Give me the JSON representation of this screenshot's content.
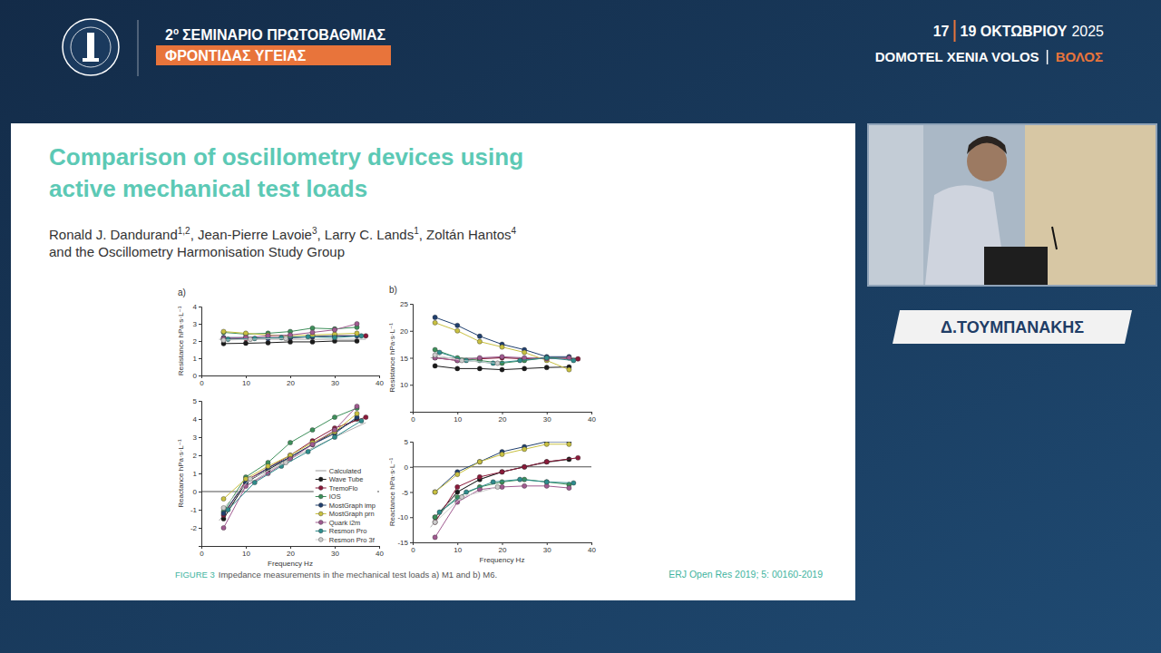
{
  "header": {
    "edition": "2",
    "edition_sup": "ο",
    "line1": "ΣΕΜΙΝΑΡΙΟ ΠΡΩΤΟΒΑΘΜΙΑΣ",
    "line2": "ΦΡΟΝΤΙΔΑΣ ΥΓΕΙΑΣ",
    "date_start": "17",
    "date_end": "19 ΟΚΤΩΒΡΙΟΥ",
    "year": "2025",
    "venue": "DOMOTEL XENIA VOLOS",
    "city": "ΒΟΛΟΣ"
  },
  "speaker": "Δ.ΤΟΥΜΠΑΝΑΚΗΣ",
  "slide": {
    "title_lines": [
      "Comparison of oscillometry devices using",
      "active mechanical test loads"
    ],
    "authors": [
      {
        "text": "Ronald J. Dandurand",
        "sup": "1,2"
      },
      {
        "text": ", Jean-Pierre Lavoie",
        "sup": "3"
      },
      {
        "text": ", Larry C. Lands",
        "sup": "1"
      },
      {
        "text": ", Zoltán Hantos",
        "sup": "4"
      }
    ],
    "authors_line2": "and the Oscillometry Harmonisation Study Group",
    "caption": {
      "label": "FIGURE 3",
      "text": "Impedance measurements in the mechanical test loads a) M1 and b) M6."
    },
    "citation": "ERJ Open Res 2019; 5: 00160-2019"
  },
  "chart_data": [
    {
      "type": "line",
      "panel": "a)",
      "y_label": "Resistance hPa·s·L⁻¹",
      "xlim": [
        0,
        40
      ],
      "xticks": [
        0,
        10,
        20,
        30,
        40
      ],
      "ylim": [
        0,
        4
      ],
      "yticks": [
        0,
        1,
        2,
        3,
        4
      ],
      "series": [
        {
          "name": "Calculated",
          "color": "#9a9a9a",
          "marker": "none",
          "x": [
            4,
            37
          ],
          "values": [
            2.1,
            2.1
          ]
        },
        {
          "name": "Wave Tube",
          "color": "#1a1a1a",
          "marker": "circle",
          "x": [
            5,
            10,
            15,
            20,
            25,
            30,
            35
          ],
          "values": [
            1.85,
            1.87,
            1.9,
            1.95,
            1.95,
            2.0,
            2.0
          ]
        },
        {
          "name": "TremoFlo",
          "color": "#8b1a3a",
          "marker": "circle",
          "x": [
            5,
            10,
            15,
            20,
            25,
            30,
            37
          ],
          "values": [
            2.1,
            2.15,
            2.2,
            2.2,
            2.25,
            2.3,
            2.3
          ]
        },
        {
          "name": "IOS",
          "color": "#3d8f5a",
          "marker": "circle",
          "x": [
            5,
            10,
            15,
            20,
            25,
            30,
            35
          ],
          "values": [
            2.5,
            2.4,
            2.45,
            2.55,
            2.75,
            2.7,
            2.8
          ]
        },
        {
          "name": "MostGraph imp",
          "color": "#1f3f6e",
          "marker": "circle",
          "x": [
            5,
            10,
            15,
            20,
            25,
            30,
            35
          ],
          "values": [
            2.2,
            2.2,
            2.15,
            2.2,
            2.25,
            2.3,
            2.3
          ]
        },
        {
          "name": "MostGraph prn",
          "color": "#c8c040",
          "marker": "circle",
          "x": [
            5,
            10,
            15,
            20,
            25,
            30,
            35
          ],
          "values": [
            2.55,
            2.45,
            2.35,
            2.3,
            2.35,
            2.4,
            2.45
          ]
        },
        {
          "name": "Quark i2m",
          "color": "#a05a90",
          "marker": "circle",
          "x": [
            5,
            10,
            15,
            20,
            25,
            30,
            35
          ],
          "values": [
            2.15,
            2.2,
            2.3,
            2.35,
            2.5,
            2.65,
            3.0
          ]
        },
        {
          "name": "Resmon Pro",
          "color": "#2e8c8c",
          "marker": "circle",
          "x": [
            6,
            12,
            18,
            24,
            30,
            36
          ],
          "values": [
            2.1,
            2.15,
            2.2,
            2.25,
            2.2,
            2.3
          ]
        },
        {
          "name": "Resmon Pro 3f",
          "color": "#cccccc",
          "marker": "circle",
          "x": [
            5,
            11,
            19
          ],
          "values": [
            2.05,
            2.1,
            2.15
          ]
        }
      ]
    },
    {
      "type": "line",
      "y_label": "Reactance hPa·s·L⁻¹",
      "x_label": "Frequency Hz",
      "legend": "bottom-right",
      "xlim": [
        0,
        40
      ],
      "xticks": [
        0,
        10,
        20,
        30,
        40
      ],
      "ylim": [
        -3,
        5
      ],
      "yticks": [
        -2,
        -1,
        0,
        1,
        2,
        3,
        4,
        5
      ],
      "series": [
        {
          "name": "Calculated",
          "color": "#9a9a9a",
          "marker": "none",
          "x": [
            4,
            10,
            15,
            20,
            25,
            30,
            37
          ],
          "values": [
            -1.6,
            0.3,
            1.1,
            1.8,
            2.4,
            3.0,
            3.8
          ]
        },
        {
          "name": "Wave Tube",
          "color": "#1a1a1a",
          "marker": "circle",
          "x": [
            5,
            10,
            15,
            20,
            25,
            30,
            35
          ],
          "values": [
            -1.5,
            0.5,
            1.2,
            1.9,
            2.6,
            3.3,
            4.0
          ]
        },
        {
          "name": "TremoFlo",
          "color": "#8b1a3a",
          "marker": "circle",
          "x": [
            5,
            10,
            15,
            20,
            25,
            30,
            37
          ],
          "values": [
            -1.3,
            0.6,
            1.3,
            2.0,
            2.8,
            3.5,
            4.1
          ]
        },
        {
          "name": "IOS",
          "color": "#3d8f5a",
          "marker": "circle",
          "x": [
            5,
            10,
            15,
            20,
            25,
            30,
            35
          ],
          "values": [
            -1.1,
            0.8,
            1.6,
            2.7,
            3.4,
            4.1,
            4.6
          ]
        },
        {
          "name": "MostGraph imp",
          "color": "#1f3f6e",
          "marker": "circle",
          "x": [
            5,
            10,
            15,
            20,
            25,
            30,
            35
          ],
          "values": [
            -1.2,
            0.5,
            1.3,
            1.9,
            2.6,
            3.2,
            4.1
          ]
        },
        {
          "name": "MostGraph prn",
          "color": "#c8c040",
          "marker": "circle",
          "x": [
            5,
            10,
            15,
            20,
            25,
            30,
            35
          ],
          "values": [
            -0.4,
            0.7,
            1.4,
            2.0,
            2.7,
            3.3,
            4.3
          ]
        },
        {
          "name": "Quark i2m",
          "color": "#a05a90",
          "marker": "circle",
          "x": [
            5,
            10,
            15,
            20,
            25,
            30,
            35
          ],
          "values": [
            -2.0,
            0.3,
            1.0,
            1.8,
            2.6,
            3.4,
            4.7
          ]
        },
        {
          "name": "Resmon Pro",
          "color": "#2e8c8c",
          "marker": "circle",
          "x": [
            6,
            12,
            18,
            24,
            30,
            36
          ],
          "values": [
            -1.0,
            0.5,
            1.4,
            2.2,
            3.0,
            3.9
          ]
        },
        {
          "name": "Resmon Pro 3f",
          "color": "#cccccc",
          "marker": "circle",
          "x": [
            5,
            11,
            19
          ],
          "values": [
            -0.9,
            0.7,
            1.6
          ]
        }
      ]
    },
    {
      "type": "line",
      "panel": "b)",
      "y_label": "Resistance hPa·s·L⁻¹",
      "xlim": [
        0,
        40
      ],
      "xticks": [
        0,
        10,
        20,
        30,
        40
      ],
      "ylim": [
        5,
        25
      ],
      "yticks": [
        10,
        15,
        20,
        25
      ],
      "series": [
        {
          "name": "Calculated",
          "color": "#9a9a9a",
          "marker": "none",
          "x": [
            4,
            37
          ],
          "values": [
            15,
            15
          ]
        },
        {
          "name": "Wave Tube",
          "color": "#1a1a1a",
          "marker": "circle",
          "x": [
            5,
            10,
            15,
            20,
            25,
            30,
            35
          ],
          "values": [
            13.5,
            13,
            13,
            12.8,
            13,
            13.2,
            13.3
          ]
        },
        {
          "name": "TremoFlo",
          "color": "#8b1a3a",
          "marker": "circle",
          "x": [
            5,
            10,
            15,
            20,
            25,
            30,
            37
          ],
          "values": [
            15,
            14.5,
            14.8,
            15,
            14.8,
            15,
            14.8
          ]
        },
        {
          "name": "IOS",
          "color": "#3d8f5a",
          "marker": "circle",
          "x": [
            5,
            10,
            15,
            20,
            25,
            30,
            35
          ],
          "values": [
            16.5,
            15,
            14.5,
            14,
            14.5,
            15,
            15
          ]
        },
        {
          "name": "MostGraph imp",
          "color": "#1f3f6e",
          "marker": "circle",
          "x": [
            5,
            10,
            15,
            20,
            25,
            30,
            35
          ],
          "values": [
            22.5,
            21,
            19,
            17.5,
            16.5,
            15.2,
            15.2
          ]
        },
        {
          "name": "MostGraph prn",
          "color": "#c8c040",
          "marker": "circle",
          "x": [
            5,
            10,
            15,
            20,
            25,
            30,
            35
          ],
          "values": [
            21.5,
            20,
            18,
            17,
            16,
            14.5,
            12.8
          ]
        },
        {
          "name": "Quark i2m",
          "color": "#a05a90",
          "marker": "circle",
          "x": [
            5,
            10,
            15,
            20,
            25,
            30,
            35
          ],
          "values": [
            15,
            14.5,
            15,
            15.2,
            15,
            14.8,
            15
          ]
        },
        {
          "name": "Resmon Pro",
          "color": "#2e8c8c",
          "marker": "circle",
          "x": [
            6,
            12,
            18,
            24,
            30,
            36
          ],
          "values": [
            16,
            14.5,
            14,
            14.5,
            15,
            14.5
          ]
        },
        {
          "name": "Resmon Pro 3f",
          "color": "#cccccc",
          "marker": "circle",
          "x": [
            5,
            11,
            19
          ],
          "values": [
            15.5,
            14.5,
            14
          ]
        }
      ]
    },
    {
      "type": "line",
      "y_label": "Reactance hPa·s·L⁻¹",
      "x_label": "Frequency Hz",
      "xlim": [
        0,
        40
      ],
      "xticks": [
        0,
        10,
        20,
        30,
        40
      ],
      "ylim": [
        -15,
        5
      ],
      "yticks": [
        -15,
        -10,
        -5,
        0,
        5
      ],
      "series": [
        {
          "name": "Calculated",
          "color": "#9a9a9a",
          "marker": "none",
          "x": [
            4,
            10,
            15,
            20,
            25,
            30,
            37
          ],
          "values": [
            -12,
            -5,
            -2.5,
            -1,
            0,
            0.8,
            1.8
          ]
        },
        {
          "name": "Wave Tube",
          "color": "#1a1a1a",
          "marker": "circle",
          "x": [
            5,
            10,
            15,
            20,
            25,
            30,
            35
          ],
          "values": [
            -10,
            -5,
            -2.5,
            -1,
            0,
            1,
            1.5
          ]
        },
        {
          "name": "TremoFlo",
          "color": "#8b1a3a",
          "marker": "circle",
          "x": [
            5,
            10,
            15,
            20,
            25,
            30,
            37
          ],
          "values": [
            -11,
            -4,
            -2,
            -1,
            0,
            1,
            1.8
          ]
        },
        {
          "name": "IOS",
          "color": "#3d8f5a",
          "marker": "circle",
          "x": [
            5,
            10,
            15,
            20,
            25,
            30,
            35
          ],
          "values": [
            -10,
            -6,
            -4,
            -3,
            -2.5,
            -3,
            -3.5
          ]
        },
        {
          "name": "MostGraph imp",
          "color": "#1f3f6e",
          "marker": "circle",
          "x": [
            5,
            10,
            15,
            20,
            25,
            30,
            35
          ],
          "values": [
            -5,
            -1,
            1,
            3,
            4,
            5,
            5
          ]
        },
        {
          "name": "MostGraph prn",
          "color": "#c8c040",
          "marker": "circle",
          "x": [
            5,
            10,
            15,
            20,
            25,
            30,
            35
          ],
          "values": [
            -5,
            -1.5,
            1,
            2.5,
            3.5,
            4.5,
            4.5
          ]
        },
        {
          "name": "Quark i2m",
          "color": "#a05a90",
          "marker": "circle",
          "x": [
            5,
            10,
            15,
            20,
            25,
            30,
            35
          ],
          "values": [
            -14,
            -7,
            -4.5,
            -4,
            -3.8,
            -3.8,
            -4.2
          ]
        },
        {
          "name": "Resmon Pro",
          "color": "#2e8c8c",
          "marker": "circle",
          "x": [
            6,
            12,
            18,
            24,
            30,
            36
          ],
          "values": [
            -9,
            -5,
            -3,
            -2.5,
            -3,
            -3.2
          ]
        },
        {
          "name": "Resmon Pro 3f",
          "color": "#cccccc",
          "marker": "circle",
          "x": [
            5,
            11,
            19
          ],
          "values": [
            -11,
            -6,
            -4
          ]
        }
      ]
    }
  ]
}
